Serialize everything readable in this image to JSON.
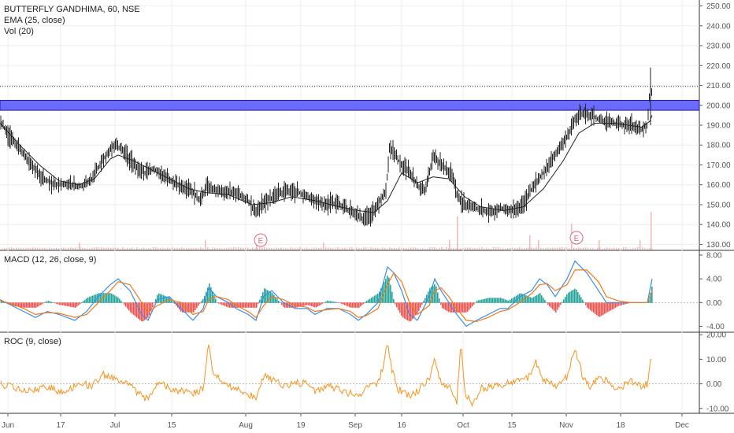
{
  "colors": {
    "price": "#222222",
    "ema": "#222222",
    "zone": "#6b6bff",
    "zone_stroke": "#1a1aa8",
    "macd": "#3a8ee6",
    "signal": "#f07a1c",
    "hist_up": "#26a69a",
    "hist_down": "#ef5350",
    "roc": "#f7931e",
    "volume": "#f3b7b7",
    "grid": "#eeeeee"
  },
  "legend": {
    "symbol": "BUTTERFLY GANDHIMA, 60, NSE",
    "ema": "EMA (25, close)",
    "vol": "Vol (20)",
    "macd": "MACD (12, 26, close, 9)",
    "roc": "ROC (9, close)"
  },
  "earnings_label": "E",
  "chart_data": [
    {
      "type": "line",
      "panel": "price",
      "y_ticks": [
        "250.00",
        "240.00",
        "230.00",
        "220.00",
        "210.00",
        "200.00",
        "190.00",
        "180.00",
        "170.00",
        "160.00",
        "150.00",
        "140.00",
        "130.00"
      ],
      "ylim": [
        127,
        253
      ],
      "zone": [
        197.5,
        202.5
      ],
      "hline": 209.5,
      "x_ticks": [
        "Jun",
        "17",
        "Jul",
        "15",
        "Aug",
        "19",
        "Sep",
        "16",
        "Oct",
        "15",
        "Nov",
        "18",
        "Dec"
      ],
      "close_keypoints": [
        [
          0,
          192
        ],
        [
          10,
          186
        ],
        [
          25,
          178
        ],
        [
          40,
          170
        ],
        [
          55,
          163
        ],
        [
          70,
          160
        ],
        [
          85,
          160
        ],
        [
          100,
          159
        ],
        [
          115,
          162
        ],
        [
          130,
          172
        ],
        [
          145,
          180
        ],
        [
          155,
          178
        ],
        [
          165,
          173
        ],
        [
          175,
          168
        ],
        [
          185,
          166
        ],
        [
          195,
          168
        ],
        [
          210,
          164
        ],
        [
          225,
          160
        ],
        [
          240,
          158
        ],
        [
          255,
          152
        ],
        [
          262,
          160
        ],
        [
          270,
          158
        ],
        [
          285,
          156
        ],
        [
          300,
          156
        ],
        [
          315,
          152
        ],
        [
          325,
          146
        ],
        [
          335,
          151
        ],
        [
          350,
          155
        ],
        [
          365,
          157
        ],
        [
          380,
          156
        ],
        [
          395,
          153
        ],
        [
          410,
          150
        ],
        [
          425,
          151
        ],
        [
          440,
          148
        ],
        [
          450,
          146
        ],
        [
          460,
          143
        ],
        [
          470,
          145
        ],
        [
          480,
          150
        ],
        [
          490,
          157
        ],
        [
          495,
          180
        ],
        [
          500,
          176
        ],
        [
          510,
          170
        ],
        [
          520,
          166
        ],
        [
          530,
          160
        ],
        [
          540,
          157
        ],
        [
          550,
          175
        ],
        [
          560,
          170
        ],
        [
          575,
          165
        ],
        [
          580,
          155
        ],
        [
          590,
          150
        ],
        [
          605,
          148
        ],
        [
          620,
          146
        ],
        [
          635,
          148
        ],
        [
          650,
          147
        ],
        [
          665,
          150
        ],
        [
          675,
          158
        ],
        [
          690,
          166
        ],
        [
          705,
          175
        ],
        [
          720,
          184
        ],
        [
          730,
          193
        ],
        [
          740,
          196
        ],
        [
          750,
          195
        ],
        [
          765,
          192
        ],
        [
          780,
          191
        ],
        [
          800,
          190
        ],
        [
          815,
          188
        ],
        [
          822,
          190
        ],
        [
          826,
          212
        ],
        [
          828,
          205
        ]
      ],
      "ema_keypoints": [
        [
          0,
          191
        ],
        [
          25,
          180
        ],
        [
          50,
          170
        ],
        [
          75,
          162
        ],
        [
          100,
          160
        ],
        [
          120,
          163
        ],
        [
          140,
          173
        ],
        [
          150,
          175
        ],
        [
          170,
          172
        ],
        [
          190,
          168
        ],
        [
          215,
          163
        ],
        [
          240,
          158
        ],
        [
          262,
          156
        ],
        [
          290,
          155
        ],
        [
          320,
          150
        ],
        [
          345,
          151
        ],
        [
          370,
          154
        ],
        [
          400,
          152
        ],
        [
          430,
          149
        ],
        [
          455,
          147
        ],
        [
          475,
          146
        ],
        [
          492,
          152
        ],
        [
          510,
          166
        ],
        [
          530,
          161
        ],
        [
          550,
          164
        ],
        [
          570,
          163
        ],
        [
          590,
          154
        ],
        [
          610,
          149
        ],
        [
          640,
          147
        ],
        [
          665,
          149
        ],
        [
          690,
          158
        ],
        [
          715,
          172
        ],
        [
          735,
          186
        ],
        [
          755,
          191
        ],
        [
          780,
          191
        ],
        [
          815,
          189
        ],
        [
          825,
          192
        ],
        [
          828,
          195
        ]
      ],
      "volume_spikes": [
        [
          580,
          14
        ],
        [
          725,
          11
        ],
        [
          826,
          16
        ],
        [
          100,
          3
        ],
        [
          260,
          4
        ],
        [
          325,
          3
        ],
        [
          410,
          3
        ],
        [
          570,
          4
        ],
        [
          672,
          6
        ],
        [
          683,
          4
        ],
        [
          760,
          4
        ],
        [
          812,
          4
        ]
      ]
    },
    {
      "type": "line",
      "panel": "macd",
      "name": "MACD (12, 26, close, 9)",
      "y_ticks": [
        "8.00",
        "4.00",
        "0.00",
        "-4.00"
      ],
      "ylim": [
        -5,
        8.8
      ],
      "macd_keypoints": [
        [
          0,
          0.5
        ],
        [
          15,
          -0.5
        ],
        [
          30,
          -1.5
        ],
        [
          45,
          -2.5
        ],
        [
          60,
          -1.5
        ],
        [
          75,
          -2.0
        ],
        [
          95,
          -3
        ],
        [
          110,
          -1.5
        ],
        [
          125,
          1
        ],
        [
          140,
          3
        ],
        [
          150,
          4
        ],
        [
          165,
          2
        ],
        [
          180,
          -2
        ],
        [
          188,
          -3
        ],
        [
          200,
          0.5
        ],
        [
          215,
          1
        ],
        [
          230,
          -1
        ],
        [
          245,
          -3
        ],
        [
          258,
          -1
        ],
        [
          265,
          2.5
        ],
        [
          275,
          1
        ],
        [
          290,
          0
        ],
        [
          300,
          -1
        ],
        [
          315,
          -2
        ],
        [
          325,
          -3
        ],
        [
          335,
          1
        ],
        [
          345,
          2
        ],
        [
          360,
          0
        ],
        [
          375,
          -1
        ],
        [
          390,
          -1
        ],
        [
          400,
          -2
        ],
        [
          415,
          -1
        ],
        [
          430,
          -1
        ],
        [
          445,
          -2
        ],
        [
          455,
          -3
        ],
        [
          465,
          -2
        ],
        [
          480,
          0
        ],
        [
          492,
          6
        ],
        [
          500,
          5
        ],
        [
          510,
          2
        ],
        [
          520,
          -2
        ],
        [
          530,
          -3
        ],
        [
          545,
          1
        ],
        [
          552,
          4
        ],
        [
          560,
          2
        ],
        [
          570,
          0
        ],
        [
          580,
          -2
        ],
        [
          592,
          -4
        ],
        [
          605,
          -3
        ],
        [
          620,
          -2
        ],
        [
          635,
          -1
        ],
        [
          645,
          -1
        ],
        [
          660,
          1
        ],
        [
          675,
          2
        ],
        [
          685,
          4
        ],
        [
          695,
          3
        ],
        [
          705,
          1
        ],
        [
          720,
          4
        ],
        [
          730,
          7
        ],
        [
          745,
          5
        ],
        [
          760,
          2
        ],
        [
          770,
          0
        ],
        [
          785,
          0
        ],
        [
          800,
          0
        ],
        [
          815,
          0
        ],
        [
          822,
          0
        ],
        [
          828,
          4
        ]
      ],
      "signal_keypoints": [
        [
          0,
          0.3
        ],
        [
          15,
          -0.2
        ],
        [
          30,
          -1
        ],
        [
          45,
          -2
        ],
        [
          60,
          -1.7
        ],
        [
          75,
          -1.8
        ],
        [
          95,
          -2.5
        ],
        [
          110,
          -2
        ],
        [
          125,
          0
        ],
        [
          140,
          2
        ],
        [
          150,
          3.5
        ],
        [
          165,
          3
        ],
        [
          180,
          0
        ],
        [
          188,
          -1.5
        ],
        [
          200,
          -0.5
        ],
        [
          215,
          0.5
        ],
        [
          230,
          0
        ],
        [
          245,
          -2
        ],
        [
          258,
          -1.5
        ],
        [
          265,
          0.5
        ],
        [
          275,
          1
        ],
        [
          290,
          0.5
        ],
        [
          300,
          -0.5
        ],
        [
          315,
          -1.5
        ],
        [
          325,
          -2.5
        ],
        [
          335,
          -0.5
        ],
        [
          345,
          1
        ],
        [
          360,
          0.5
        ],
        [
          375,
          -0.5
        ],
        [
          390,
          -0.8
        ],
        [
          400,
          -1.5
        ],
        [
          415,
          -1.2
        ],
        [
          430,
          -1
        ],
        [
          445,
          -1.5
        ],
        [
          455,
          -2.5
        ],
        [
          465,
          -2.2
        ],
        [
          480,
          -1
        ],
        [
          492,
          3
        ],
        [
          500,
          5
        ],
        [
          510,
          3.5
        ],
        [
          520,
          0
        ],
        [
          530,
          -2
        ],
        [
          545,
          -0.5
        ],
        [
          552,
          2
        ],
        [
          560,
          2.5
        ],
        [
          570,
          1
        ],
        [
          580,
          -1
        ],
        [
          592,
          -3
        ],
        [
          605,
          -3.2
        ],
        [
          620,
          -2.5
        ],
        [
          635,
          -1.5
        ],
        [
          645,
          -1.2
        ],
        [
          660,
          0
        ],
        [
          675,
          1.5
        ],
        [
          685,
          3
        ],
        [
          695,
          3.2
        ],
        [
          705,
          2
        ],
        [
          720,
          3
        ],
        [
          730,
          5.5
        ],
        [
          745,
          5.5
        ],
        [
          760,
          3.5
        ],
        [
          770,
          1
        ],
        [
          785,
          0.3
        ],
        [
          800,
          0
        ],
        [
          815,
          0
        ],
        [
          822,
          0
        ],
        [
          828,
          2
        ]
      ]
    },
    {
      "type": "line",
      "panel": "roc",
      "name": "ROC (9, close)",
      "y_ticks": [
        "20.00",
        "10.00",
        "0.00",
        "-10.00"
      ],
      "ylim": [
        -12,
        21
      ],
      "roc_keypoints": [
        [
          0,
          0
        ],
        [
          20,
          -2
        ],
        [
          40,
          -3
        ],
        [
          60,
          -1
        ],
        [
          75,
          -3
        ],
        [
          90,
          -2
        ],
        [
          100,
          1
        ],
        [
          115,
          -1
        ],
        [
          130,
          4
        ],
        [
          140,
          3
        ],
        [
          150,
          2
        ],
        [
          165,
          -1
        ],
        [
          180,
          -5
        ],
        [
          188,
          -6
        ],
        [
          200,
          1
        ],
        [
          215,
          -2
        ],
        [
          230,
          -3
        ],
        [
          245,
          -4
        ],
        [
          258,
          -2
        ],
        [
          265,
          16
        ],
        [
          270,
          5
        ],
        [
          285,
          0
        ],
        [
          300,
          -2
        ],
        [
          315,
          -4
        ],
        [
          325,
          -6
        ],
        [
          335,
          3
        ],
        [
          345,
          2
        ],
        [
          360,
          -1
        ],
        [
          375,
          0
        ],
        [
          390,
          1
        ],
        [
          400,
          -3
        ],
        [
          415,
          -1
        ],
        [
          430,
          -2
        ],
        [
          445,
          -4
        ],
        [
          455,
          -5
        ],
        [
          465,
          -2
        ],
        [
          480,
          0
        ],
        [
          487,
          8
        ],
        [
          492,
          17
        ],
        [
          497,
          6
        ],
        [
          505,
          -2
        ],
        [
          520,
          -5
        ],
        [
          530,
          -3
        ],
        [
          545,
          2
        ],
        [
          552,
          10
        ],
        [
          560,
          0
        ],
        [
          570,
          -1
        ],
        [
          580,
          -8
        ],
        [
          585,
          17
        ],
        [
          590,
          -4
        ],
        [
          600,
          -8
        ],
        [
          610,
          -2
        ],
        [
          625,
          -1
        ],
        [
          640,
          0
        ],
        [
          655,
          1
        ],
        [
          670,
          2
        ],
        [
          680,
          9
        ],
        [
          690,
          2
        ],
        [
          705,
          -1
        ],
        [
          720,
          3
        ],
        [
          730,
          14
        ],
        [
          740,
          3
        ],
        [
          750,
          -2
        ],
        [
          760,
          4
        ],
        [
          770,
          1
        ],
        [
          785,
          -2
        ],
        [
          800,
          1
        ],
        [
          815,
          -1
        ],
        [
          822,
          0
        ],
        [
          827,
          11
        ]
      ]
    }
  ]
}
